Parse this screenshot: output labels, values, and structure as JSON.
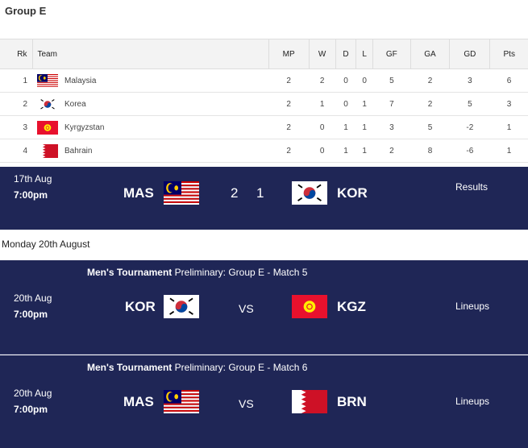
{
  "group_title": "Group E",
  "table": {
    "headers": [
      "Rk",
      "Team",
      "MP",
      "W",
      "D",
      "L",
      "GF",
      "GA",
      "GD",
      "Pts"
    ],
    "rows": [
      {
        "rk": "1",
        "team": "Malaysia",
        "flag": "malaysia",
        "mp": "2",
        "w": "2",
        "d": "0",
        "l": "0",
        "gf": "5",
        "ga": "2",
        "gd": "3",
        "pts": "6"
      },
      {
        "rk": "2",
        "team": "Korea",
        "flag": "korea",
        "mp": "2",
        "w": "1",
        "d": "0",
        "l": "1",
        "gf": "7",
        "ga": "2",
        "gd": "5",
        "pts": "3"
      },
      {
        "rk": "3",
        "team": "Kyrgyzstan",
        "flag": "kyrgyzstan",
        "mp": "2",
        "w": "0",
        "d": "1",
        "l": "1",
        "gf": "3",
        "ga": "5",
        "gd": "-2",
        "pts": "1"
      },
      {
        "rk": "4",
        "team": "Bahrain",
        "flag": "bahrain",
        "mp": "2",
        "w": "0",
        "d": "1",
        "l": "1",
        "gf": "2",
        "ga": "8",
        "gd": "-6",
        "pts": "1"
      }
    ]
  },
  "result": {
    "date": "17th Aug",
    "time": "7:00pm",
    "home": "MAS",
    "home_score": "2",
    "away_score": "1",
    "away": "KOR",
    "link": "Results"
  },
  "day_label": "Monday 20th August",
  "fixtures": [
    {
      "comp_bold": "Men's Tournament",
      "comp": "Preliminary: Group E - Match 5",
      "date": "20th Aug",
      "time": "7:00pm",
      "home": "KOR",
      "vs": "VS",
      "away": "KGZ",
      "link": "Lineups"
    },
    {
      "comp_bold": "Men's Tournament",
      "comp": "Preliminary: Group E - Match 6",
      "date": "20th Aug",
      "time": "7:00pm",
      "home": "MAS",
      "vs": "VS",
      "away": "BRN",
      "link": "Lineups"
    }
  ],
  "colors": {
    "navy": "#1f2656"
  }
}
